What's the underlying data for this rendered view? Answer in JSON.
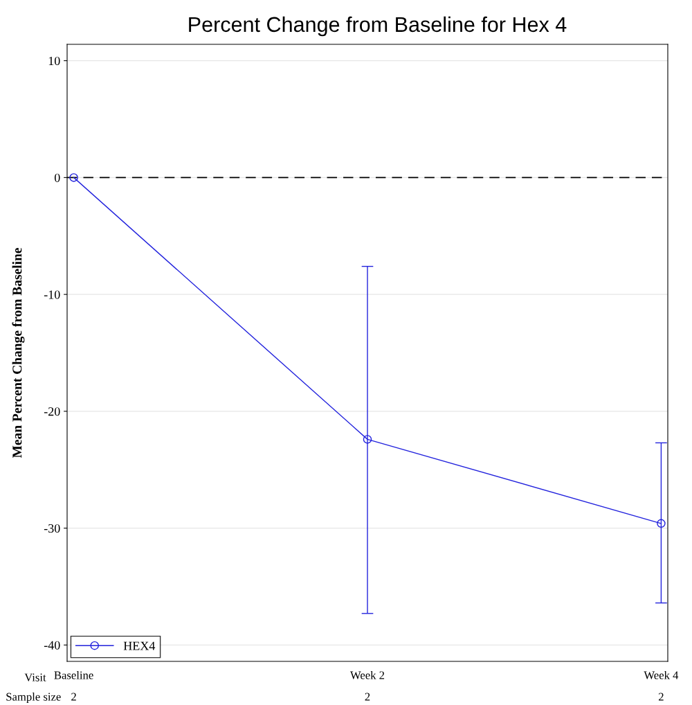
{
  "chart_data": {
    "type": "line",
    "title": "Percent Change from Baseline for Hex 4",
    "ylabel": "Mean Percent Change from Baseline",
    "xlabel": "Visit",
    "categories": [
      "Baseline",
      "Week 2",
      "Week 4"
    ],
    "series": [
      {
        "name": "HEX4",
        "color": "#2222dd",
        "values": [
          0,
          -22.4,
          -29.6
        ],
        "errors": [
          null,
          [
            -37.3,
            -7.6
          ],
          [
            -36.4,
            -22.7
          ]
        ]
      }
    ],
    "ylim": [
      -41.4,
      11.4
    ],
    "yticks": [
      -40,
      -30,
      -20,
      -10,
      0,
      10
    ],
    "grid": "y",
    "legend": "bottom left",
    "marker": "circle",
    "line_style": "solid",
    "ref_lines": [
      {
        "axis": "y",
        "value": 0,
        "label": null,
        "color": "#000000",
        "line_style": "dashed"
      }
    ],
    "annotations": [
      "Sample size",
      "2",
      "2",
      "2"
    ]
  }
}
